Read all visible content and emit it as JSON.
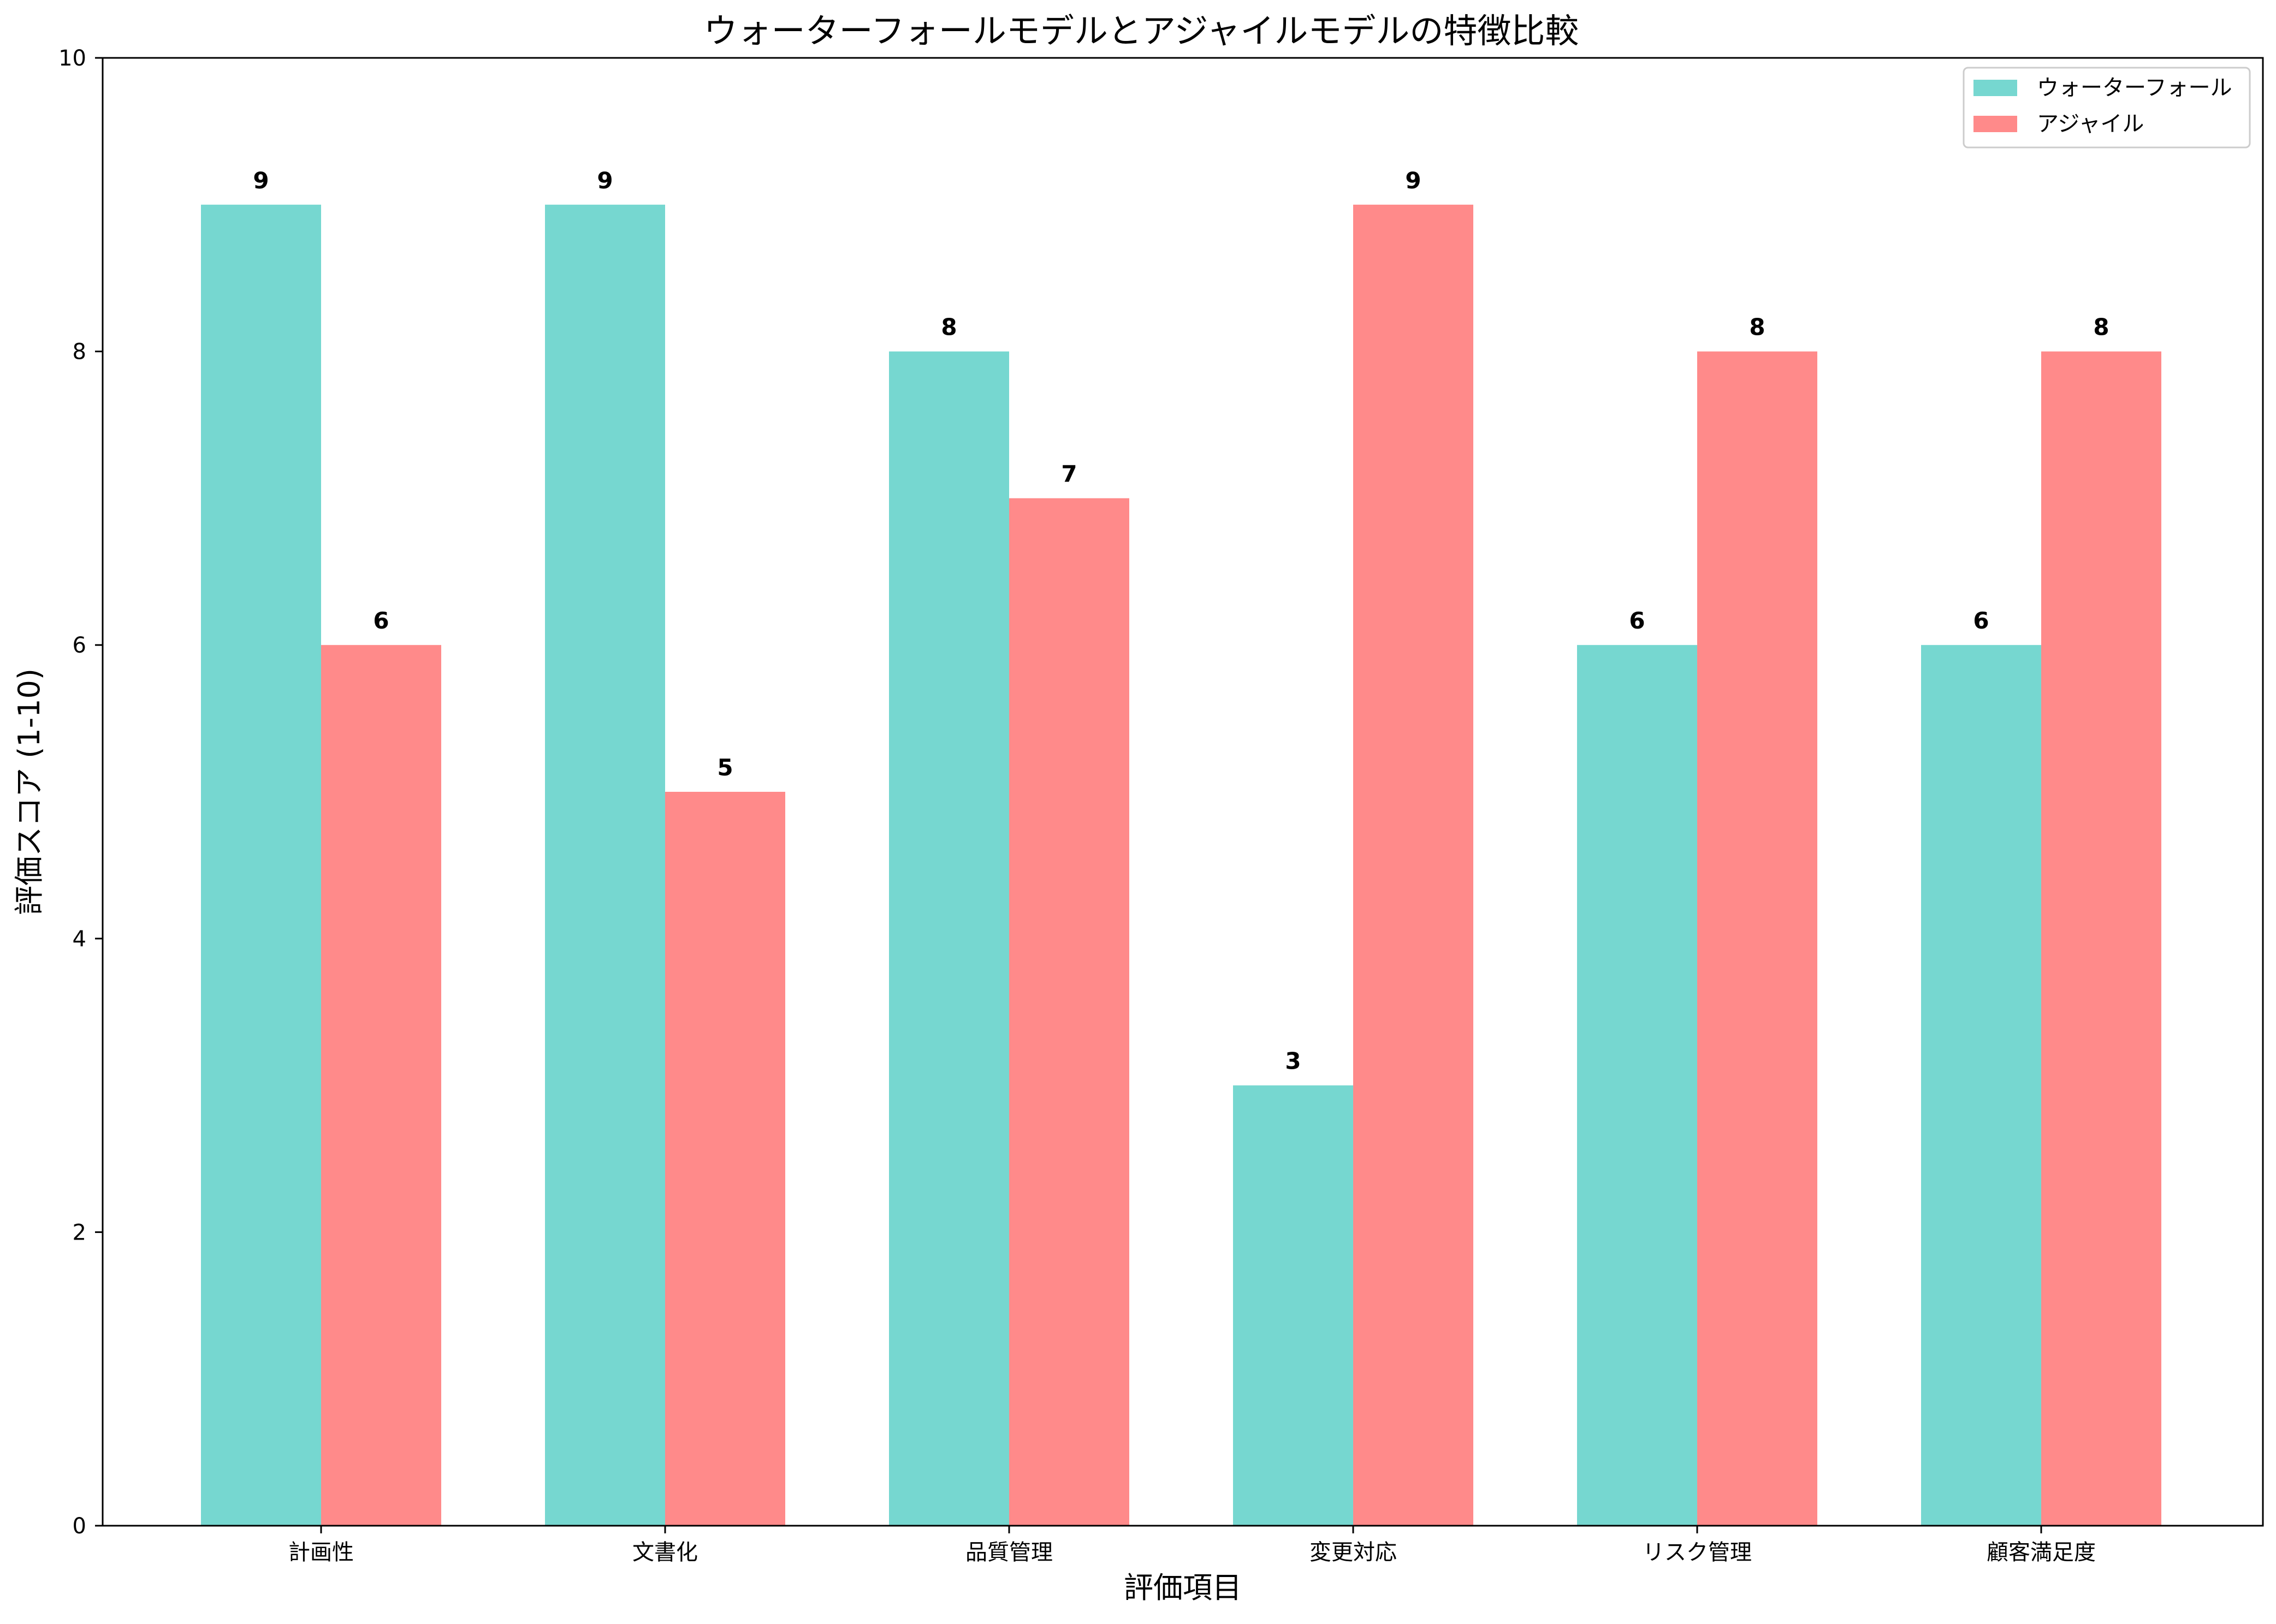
{
  "chart_data": {
    "type": "bar",
    "title": "ウォーターフォールモデルとアジャイルモデルの特徴比較",
    "xlabel": "評価項目",
    "ylabel": "評価スコア (1-10)",
    "ylim": [
      0,
      10
    ],
    "yticks": [
      0,
      2,
      4,
      6,
      8,
      10
    ],
    "grid": false,
    "legend_position": "top-right",
    "categories": [
      "計画性",
      "文書化",
      "品質管理",
      "変更対応",
      "リスク管理",
      "顧客満足度"
    ],
    "series": [
      {
        "name": "ウォーターフォール",
        "color": "#76d7d0",
        "values": [
          9,
          9,
          8,
          3,
          6,
          6
        ]
      },
      {
        "name": "アジャイル",
        "color": "#ff8a8a",
        "values": [
          6,
          5,
          7,
          9,
          8,
          8
        ]
      }
    ]
  }
}
